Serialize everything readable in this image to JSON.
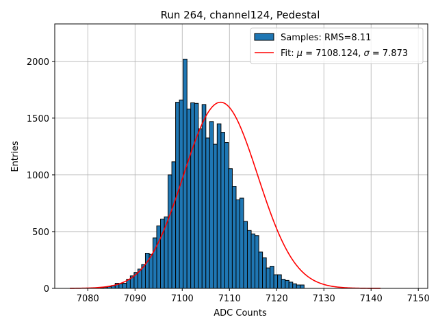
{
  "chart_data": {
    "type": "histogram",
    "title": "Run 264, channel124, Pedestal",
    "xlabel": "ADC Counts",
    "ylabel": "Entries",
    "xlim": [
      7073,
      7152
    ],
    "ylim": [
      0,
      2330
    ],
    "xticks": [
      7080,
      7090,
      7100,
      7110,
      7120,
      7130,
      7140,
      7150
    ],
    "yticks": [
      0,
      500,
      1000,
      1500,
      2000
    ],
    "grid": true,
    "legend_placement": "top-right",
    "bar_color": "#1f77b4",
    "fit_color": "#ff0000",
    "bins": {
      "width": 0.81,
      "start": [
        7076.2,
        7077.0,
        7077.8,
        7078.6,
        7079.4,
        7080.2,
        7081.0,
        7081.8,
        7082.6,
        7083.4,
        7084.2,
        7085.0,
        7085.8,
        7086.6,
        7087.4,
        7088.2,
        7089.0,
        7089.8,
        7090.6,
        7091.4,
        7092.2,
        7093.0,
        7093.8,
        7094.6,
        7095.4,
        7096.2,
        7097.0,
        7097.8,
        7098.6,
        7099.4,
        7100.2,
        7101.0,
        7101.8,
        7102.6,
        7103.4,
        7104.2,
        7105.0,
        7105.8,
        7106.6,
        7107.4,
        7108.2,
        7109.0,
        7109.8,
        7110.6,
        7111.4,
        7112.2,
        7113.0,
        7113.8,
        7114.6,
        7115.4,
        7116.2,
        7117.0,
        7117.8,
        7118.6,
        7119.4,
        7120.2,
        7121.0,
        7121.8,
        7122.6,
        7123.4,
        7124.2,
        7125.0,
        7125.8,
        7126.6,
        7127.4,
        7128.2,
        7129.0,
        7129.8,
        7130.6,
        7131.4,
        7132.2,
        7133.0,
        7133.8,
        7134.6,
        7135.4,
        7136.2,
        7137.0,
        7137.8,
        7138.6,
        7139.4,
        7140.2,
        7141.0
      ],
      "counts": [
        0,
        0,
        0,
        0,
        0,
        0,
        0,
        0,
        5,
        10,
        15,
        25,
        45,
        40,
        45,
        80,
        110,
        140,
        170,
        210,
        310,
        300,
        445,
        550,
        610,
        630,
        1000,
        1115,
        1640,
        1660,
        2020,
        1580,
        1635,
        1630,
        1405,
        1620,
        1325,
        1470,
        1270,
        1450,
        1375,
        1285,
        1055,
        900,
        780,
        795,
        590,
        510,
        480,
        465,
        320,
        270,
        180,
        195,
        120,
        120,
        80,
        70,
        55,
        40,
        30,
        30,
        0,
        0,
        0,
        0,
        0,
        0,
        0,
        0,
        0,
        0,
        0,
        0,
        0,
        0,
        0,
        0,
        0,
        0,
        0,
        0
      ]
    },
    "fit": {
      "mu": 7108.124,
      "sigma": 7.873,
      "peak": 1640,
      "x_range": [
        7076.2,
        7142.0
      ]
    },
    "legend": {
      "samples_label": "Samples: RMS=8.11",
      "fit_prefix": "Fit: ",
      "fit_mu_symbol": "μ",
      "fit_mu_text": " = 7108.124, ",
      "fit_sigma_symbol": "σ",
      "fit_sigma_text": " = 7.873"
    }
  }
}
